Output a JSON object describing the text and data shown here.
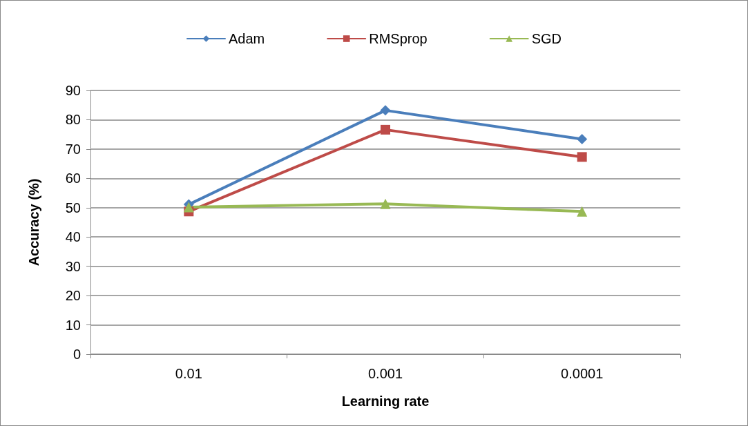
{
  "chart_data": {
    "type": "line",
    "xlabel": "Learning rate",
    "ylabel": "Accuracy (%)",
    "categories": [
      "0.01",
      "0.001",
      "0.0001"
    ],
    "series": [
      {
        "name": "Adam",
        "color": "#4a7ebb",
        "marker": "diamond",
        "values": [
          51.1,
          83.2,
          73.4
        ]
      },
      {
        "name": "RMSprop",
        "color": "#be4b48",
        "marker": "square",
        "values": [
          48.7,
          76.6,
          67.3
        ]
      },
      {
        "name": "SGD",
        "color": "#98b954",
        "marker": "triangle",
        "values": [
          50.2,
          51.3,
          48.7
        ]
      }
    ],
    "ylim": [
      0,
      90
    ],
    "yticks": [
      0,
      10,
      20,
      30,
      40,
      50,
      60,
      70,
      80,
      90
    ],
    "grid": "y",
    "legend": "top",
    "line_style": "solid"
  }
}
